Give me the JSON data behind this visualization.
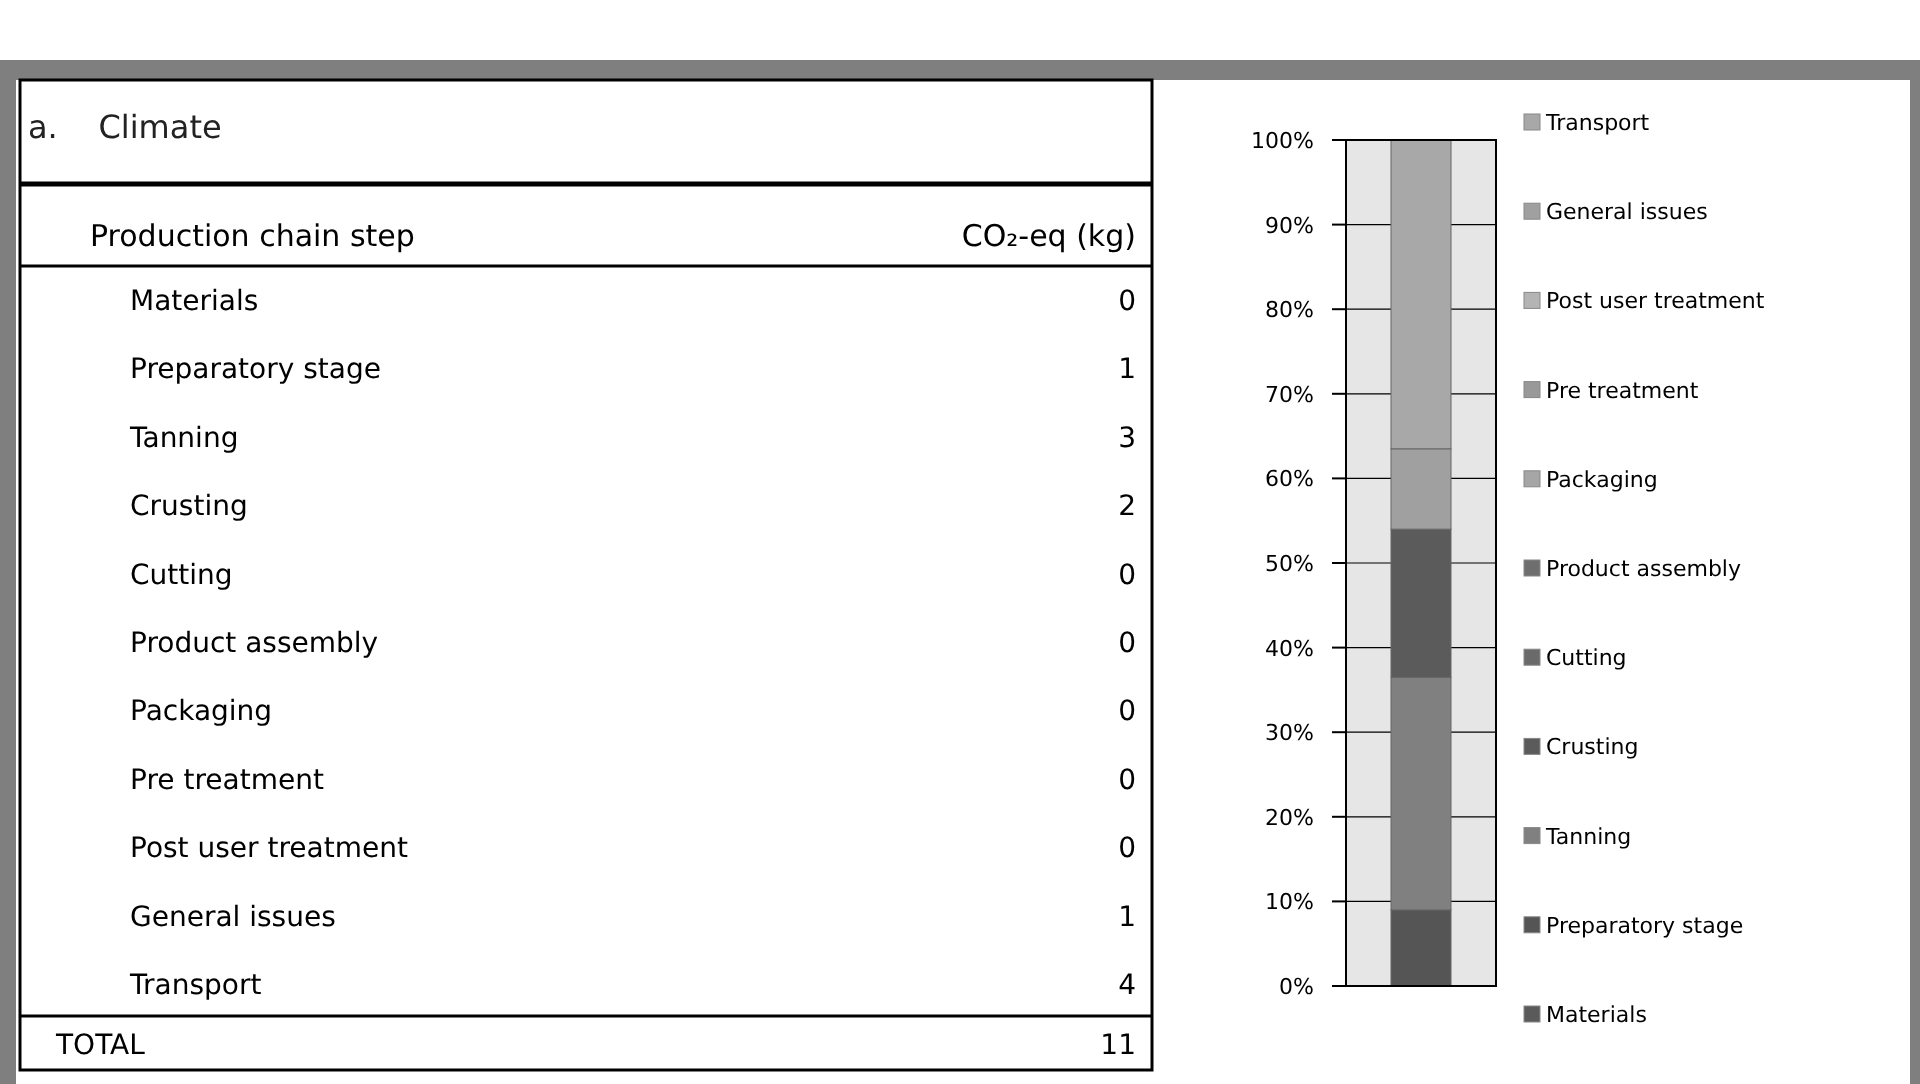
{
  "chart_data": [
    {
      "type": "other",
      "title": "a.    Climate",
      "xlabel": "Production chain step",
      "ylabel": "CO₂-eq (kg)",
      "categories": [
        "Materials",
        "Preparatory stage",
        "Tanning",
        "Crusting",
        "Cutting",
        "Product assembly",
        "Packaging",
        "Pre treatment",
        "Post user treatment",
        "General issues",
        "Transport"
      ],
      "values": [
        0,
        1,
        3,
        2,
        0,
        0,
        0,
        0,
        0,
        1,
        4
      ],
      "data_labels": true,
      "annotations": [
        "TOTAL",
        "11"
      ]
    },
    {
      "type": "bar",
      "stacked": true,
      "categories": [
        null
      ],
      "ylim": [
        0,
        100
      ],
      "yticks": [
        {
          "value": 0,
          "label": "0%"
        },
        {
          "value": 10,
          "label": "10%"
        },
        {
          "value": 20,
          "label": "20%"
        },
        {
          "value": 30,
          "label": "30%"
        },
        {
          "value": 40,
          "label": "40%"
        },
        {
          "value": 50,
          "label": "50%"
        },
        {
          "value": 60,
          "label": "60%"
        },
        {
          "value": 70,
          "label": "70%"
        },
        {
          "value": 80,
          "label": "80%"
        },
        {
          "value": 90,
          "label": "90%"
        },
        {
          "value": 100,
          "label": "100%"
        }
      ],
      "grid": "y",
      "legend": "right",
      "series": [
        {
          "name": "Materials",
          "color": "#5a5a5a",
          "values": [
            0
          ]
        },
        {
          "name": "Preparatory stage",
          "color": "#555555",
          "values": [
            9
          ]
        },
        {
          "name": "Tanning",
          "color": "#808080",
          "values": [
            27.5
          ]
        },
        {
          "name": "Crusting",
          "color": "#5b5b5b",
          "values": [
            17.5
          ]
        },
        {
          "name": "Cutting",
          "color": "#6a6a6a",
          "values": [
            0
          ]
        },
        {
          "name": "Product assembly",
          "color": "#6e6e6e",
          "values": [
            0
          ]
        },
        {
          "name": "Packaging",
          "color": "#a6a6a6",
          "values": [
            0
          ]
        },
        {
          "name": "Pre treatment",
          "color": "#999999",
          "values": [
            0
          ]
        },
        {
          "name": "Post user treatment",
          "color": "#b4b4b4",
          "values": [
            0
          ]
        },
        {
          "name": "General issues",
          "color": "#a0a0a0",
          "values": [
            9.5
          ]
        },
        {
          "name": "Transport",
          "color": "#a8a8a8",
          "values": [
            36.5
          ]
        }
      ]
    }
  ]
}
